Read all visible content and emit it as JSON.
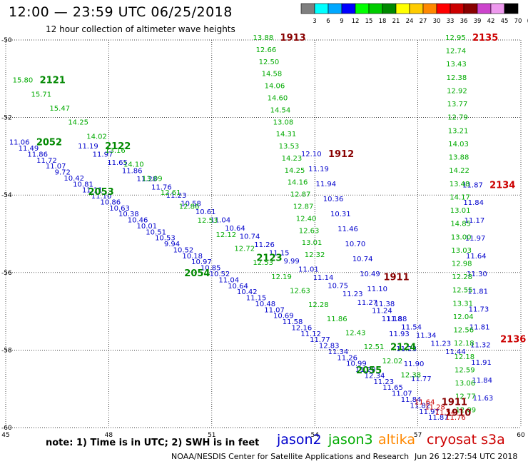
{
  "header": {
    "title": "12:00 — 23:59 UTC 06/25/2018",
    "subtitle": "12 hour collection of altimeter wave heights"
  },
  "color_scale": {
    "labels": [
      "3",
      "6",
      "9",
      "12",
      "15",
      "18",
      "21",
      "24",
      "27",
      "30",
      "33",
      "36",
      "39",
      "42",
      "45",
      "70",
      "(ft)"
    ],
    "colors": [
      "#7f7f7f",
      "#00ffff",
      "#00a8ff",
      "#0000ff",
      "#00ff00",
      "#00cc00",
      "#008800",
      "#ffff00",
      "#ffcc00",
      "#ff8800",
      "#ff0000",
      "#cc0000",
      "#880000",
      "#cc44cc",
      "#ee99ee",
      "#000000"
    ]
  },
  "footer": {
    "note": "note: 1) Time is in UTC; 2) SWH is in feet",
    "credit": "NOAA/NESDIS Center for Satellite Applications and Research",
    "timestamp": "Jun 26 12:27:54 UTC 2018"
  },
  "legend": [
    {
      "name": "jason2",
      "color": "#0000cc"
    },
    {
      "name": "jason3",
      "color": "#00aa00"
    },
    {
      "name": "altika",
      "color": "#ff8800"
    },
    {
      "name": "cryosat s3a",
      "color": "#cc0000"
    }
  ],
  "chart_data": {
    "type": "scatter",
    "xlim": [
      45,
      60
    ],
    "ylim": [
      -60,
      -50
    ],
    "x_ticks": [
      "45",
      "48",
      "51",
      "54",
      "57",
      "60"
    ],
    "y_ticks": [
      "-50",
      "-52",
      "-54",
      "-56",
      "-58",
      "-60"
    ],
    "grid": true,
    "series": [
      {
        "name": "jason2",
        "color": "#0000cc",
        "tracks": [
          {
            "label": "2052",
            "label_color": "#008800",
            "start": [
              45.1,
              -52.7
            ],
            "end": [
              57.3,
              -59.8
            ],
            "values": [
              "11.06",
              "11.49",
              "11.86",
              "11.72",
              "11.07",
              "9.72",
              "10.42",
              "10.81",
              "11.11",
              "11.10",
              "10.86",
              "10.63",
              "10.38",
              "10.46",
              "10.01",
              "10.51",
              "10.53",
              "9.94",
              "10.52",
              "10.18",
              "10.97",
              "10.85",
              "10.52",
              "11.04",
              "10.64",
              "10.42",
              "11.15",
              "10.48",
              "11.07",
              "10.69",
              "11.58",
              "12.16",
              "11.12",
              "11.77",
              "12.83",
              "11.34",
              "11.26",
              "10.99",
              "11.20",
              "12.34",
              "11.23",
              "11.65",
              "11.07",
              "11.84",
              "11.82",
              "11.97",
              "11.87"
            ]
          },
          {
            "label": "2122",
            "label_color": "#008800",
            "start": [
              47.1,
              -52.8
            ],
            "end": [
              57.8,
              -58.1
            ],
            "values": [
              "11.19",
              "11.97",
              "11.65",
              "11.86",
              "11.28",
              "11.76",
              "11.23",
              "10.58",
              "10.61",
              "11.04",
              "10.64",
              "10.74",
              "11.26",
              "11.15",
              "9.99",
              "11.01",
              "11.14",
              "10.75",
              "11.23",
              "11.27",
              "11.24",
              "11.88",
              "11.54",
              "11.34",
              "11.23",
              "11.44"
            ]
          },
          {
            "label": "1912",
            "label_color": "#880000",
            "start": [
              53.6,
              -53.0
            ],
            "end": [
              56.8,
              -58.8
            ],
            "values": [
              "12.10",
              "11.19",
              "11.94",
              "10.36",
              "10.31",
              "11.46",
              "10.70",
              "10.74",
              "10.49",
              "11.10",
              "11.38",
              "11.18",
              "11.93",
              "11.23",
              "11.90",
              "11.77"
            ]
          },
          {
            "label": "2134",
            "label_color": "#cc0000",
            "start": [
              58.3,
              -53.8
            ],
            "end": [
              58.6,
              -59.3
            ],
            "values": [
              "11.87",
              "11.84",
              "11.17",
              "11.97",
              "11.64",
              "11.30",
              "11.81",
              "11.73",
              "11.81",
              "11.32",
              "11.91",
              "11.84",
              "11.63"
            ]
          }
        ]
      },
      {
        "name": "jason3",
        "color": "#00aa00",
        "tracks": [
          {
            "label": "2121",
            "label_color": "#008800",
            "start": [
              45.2,
              -51.1
            ],
            "end": [
              56.5,
              -58.7
            ],
            "values": [
              "15.80",
              "15.71",
              "15.47",
              "14.25",
              "14.02",
              "13.16",
              "14.10",
              "13.09",
              "12.61",
              "12.86",
              "12.53",
              "12.12",
              "12.72",
              "12.53",
              "12.19",
              "12.63",
              "12.28",
              "11.86",
              "12.43",
              "12.51",
              "12.02",
              "12.38"
            ]
          },
          {
            "label": "1913",
            "label_color": "#880000",
            "start": [
              52.2,
              -50.0
            ],
            "end": [
              53.7,
              -55.6
            ],
            "values": [
              "13.88",
              "12.66",
              "12.50",
              "14.58",
              "14.06",
              "14.60",
              "14.54",
              "13.08",
              "14.31",
              "13.53",
              "14.23",
              "14.25",
              "14.16",
              "12.87",
              "12.87",
              "12.40",
              "12.63",
              "13.01",
              "12.32"
            ]
          },
          {
            "label": "2135",
            "label_color": "#cc0000",
            "start": [
              57.8,
              -50.0
            ],
            "end": [
              58.1,
              -59.6
            ],
            "values": [
              "12.95",
              "12.74",
              "13.43",
              "12.38",
              "12.92",
              "13.77",
              "12.79",
              "13.21",
              "14.03",
              "13.88",
              "14.22",
              "13.48",
              "14.17",
              "13.01",
              "14.85",
              "13.00",
              "13.03",
              "12.98",
              "12.28",
              "12.55",
              "13.31",
              "12.04",
              "12.56",
              "12.18",
              "12.18",
              "12.59",
              "13.06",
              "12.77",
              "12.09"
            ]
          }
        ]
      },
      {
        "name": "cryosat s3a",
        "color": "#cc0000",
        "tracks": [
          {
            "label": "1911",
            "label_color": "#880000",
            "start": [
              56.9,
              -59.4
            ],
            "end": [
              57.8,
              -59.8
            ],
            "values": [
              "11.64",
              "11.28",
              "11.54",
              "11.76"
            ]
          }
        ]
      }
    ],
    "pass_labels": [
      {
        "text": "2053",
        "x": 47.4,
        "y": -54.0,
        "color": "#008800"
      },
      {
        "text": "2123",
        "x": 52.3,
        "y": -55.7,
        "color": "#008800"
      },
      {
        "text": "2054",
        "x": 50.2,
        "y": -56.1,
        "color": "#008800"
      },
      {
        "text": "1911",
        "x": 56.0,
        "y": -56.2,
        "color": "#880000"
      },
      {
        "text": "2124",
        "x": 56.2,
        "y": -58.0,
        "color": "#008800"
      },
      {
        "text": "2055",
        "x": 55.2,
        "y": -58.6,
        "color": "#008800"
      },
      {
        "text": "2136",
        "x": 59.4,
        "y": -57.8,
        "color": "#cc0000"
      },
      {
        "text": "1910",
        "x": 57.8,
        "y": -59.7,
        "color": "#880000"
      }
    ]
  }
}
